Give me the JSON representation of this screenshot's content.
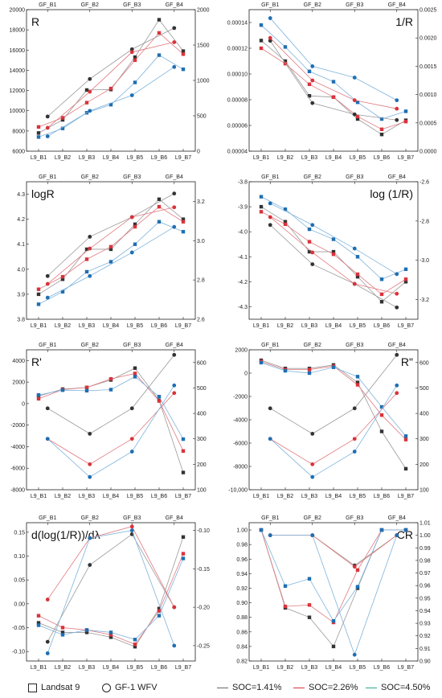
{
  "chart_data": [
    {
      "type": "line",
      "title": "R",
      "top_ticks": [
        "GF_B1",
        "GF_B2",
        "GF_B3",
        "GF_B4"
      ],
      "bottom_ticks": [
        "L9_B1",
        "L9_B2",
        "L9_B3",
        "L9_B4",
        "L9_B5",
        "L9_B6",
        "L9_B7"
      ],
      "left_axis": {
        "min": 6000,
        "max": 20000,
        "ticks": [
          "6000",
          "8000",
          "10000",
          "12000",
          "14000",
          "16000",
          "18000",
          "20000"
        ]
      },
      "right_axis": {
        "min": 0,
        "max": 2000,
        "ticks": [
          "0",
          "500",
          "1000",
          "1500",
          "2000"
        ]
      },
      "landsat": [
        {
          "soc": "SOC=1.41%",
          "values": [
            7800,
            9100,
            12050,
            12100,
            15300,
            19000,
            15900
          ]
        },
        {
          "soc": "SOC=2.26%",
          "values": [
            8400,
            9300,
            10800,
            12200,
            15000,
            17700,
            15600
          ]
        },
        {
          "soc": "SOC=4.50%",
          "values": [
            7400,
            8250,
            9800,
            10600,
            12800,
            15500,
            14100
          ]
        }
      ],
      "gf": [
        {
          "soc": "SOC=1.41%",
          "values": [
            490,
            1020,
            1440,
            1740
          ]
        },
        {
          "soc": "SOC=2.26%",
          "values": [
            330,
            840,
            1400,
            1540
          ]
        },
        {
          "soc": "SOC=4.50%",
          "values": [
            210,
            570,
            790,
            1190
          ]
        }
      ]
    },
    {
      "type": "line",
      "title": "1/R",
      "top_ticks": [
        "GF_B1",
        "GF_B2",
        "GF_B3",
        "GF_B4"
      ],
      "bottom_ticks": [
        "L9_B1",
        "L9_B2",
        "L9_B3",
        "L9_B4",
        "L9_B5",
        "L9_B6",
        "L9_B7"
      ],
      "left_axis": {
        "min": 4e-05,
        "max": 0.00015,
        "ticks": [
          "0.00004",
          "0.00006",
          "0.00008",
          "0.00010",
          "0.00012",
          "0.00014"
        ]
      },
      "right_axis": {
        "min": 0,
        "max": 0.0025,
        "ticks": [
          "0.0000",
          "0.0005",
          "0.0010",
          "0.0015",
          "0.0020",
          "0.0025"
        ]
      },
      "landsat": [
        {
          "soc": "SOC=1.41%",
          "values": [
            0.000126,
            0.00011,
            8.3e-05,
            8.2e-05,
            6.5e-05,
            5.3e-05,
            6.4e-05
          ]
        },
        {
          "soc": "SOC=2.26%",
          "values": [
            0.00012,
            0.000108,
            9.2e-05,
            8.2e-05,
            6.7e-05,
            5.7e-05,
            6.3e-05
          ]
        },
        {
          "soc": "SOC=4.50%",
          "values": [
            0.000138,
            0.000121,
            0.000102,
            9.4e-05,
            7.8e-05,
            6.5e-05,
            7.1e-05
          ]
        }
      ],
      "gf": [
        {
          "soc": "SOC=1.41%",
          "values": [
            0.00195,
            0.00085,
            0.00065,
            0.00055
          ]
        },
        {
          "soc": "SOC=2.26%",
          "values": [
            0.002,
            0.00125,
            0.0009,
            0.00075
          ]
        },
        {
          "soc": "SOC=4.50%",
          "values": [
            0.00235,
            0.0015,
            0.0013,
            0.0009
          ]
        }
      ]
    },
    {
      "type": "line",
      "title": "logR",
      "top_ticks": [
        "GF_B1",
        "GF_B2",
        "GF_B3",
        "GF_B4"
      ],
      "bottom_ticks": [
        "L9_B1",
        "L9_B2",
        "L9_B3",
        "L9_B4",
        "L9_B5",
        "L9_B6",
        "L9_B7"
      ],
      "left_axis": {
        "min": 3.8,
        "max": 4.35,
        "ticks": [
          "3.8",
          "3.9",
          "4.0",
          "4.1",
          "4.2",
          "4.3"
        ]
      },
      "right_axis": {
        "min": 2.6,
        "max": 3.3,
        "ticks": [
          "2.6",
          "2.8",
          "3.0",
          "3.2"
        ]
      },
      "landsat": [
        {
          "soc": "SOC=1.41%",
          "values": [
            3.9,
            3.96,
            4.08,
            4.08,
            4.18,
            4.28,
            4.2
          ]
        },
        {
          "soc": "SOC=2.26%",
          "values": [
            3.92,
            3.97,
            4.04,
            4.09,
            4.17,
            4.25,
            4.19
          ]
        },
        {
          "soc": "SOC=4.50%",
          "values": [
            3.86,
            3.91,
            3.99,
            4.03,
            4.1,
            4.19,
            4.15
          ]
        }
      ],
      "gf": [
        {
          "soc": "SOC=1.41%",
          "values": [
            2.82,
            3.02,
            3.12,
            3.24
          ]
        },
        {
          "soc": "SOC=2.26%",
          "values": [
            2.78,
            2.96,
            3.12,
            3.17
          ]
        },
        {
          "soc": "SOC=4.50%",
          "values": [
            2.71,
            2.82,
            2.94,
            3.07
          ]
        }
      ]
    },
    {
      "type": "line",
      "title": "log (1/R)",
      "top_ticks": [
        "GF_B1",
        "GF_B2",
        "GF_B3",
        "GF_B4"
      ],
      "bottom_ticks": [
        "L9_B1",
        "L9_B2",
        "L9_B3",
        "L9_B4",
        "L9_B5",
        "L9_B6",
        "L9_B7"
      ],
      "left_axis": {
        "min": -4.35,
        "max": -3.8,
        "ticks": [
          "-4.3",
          "-4.2",
          "-4.1",
          "-4.0",
          "-3.9",
          "-3.8"
        ]
      },
      "right_axis": {
        "min": -3.3,
        "max": -2.6,
        "ticks": [
          "-3.2",
          "-3.0",
          "-2.8",
          "-2.6"
        ]
      },
      "landsat": [
        {
          "soc": "SOC=1.41%",
          "values": [
            -3.9,
            -3.96,
            -4.08,
            -4.08,
            -4.18,
            -4.28,
            -4.2
          ]
        },
        {
          "soc": "SOC=2.26%",
          "values": [
            -3.92,
            -3.97,
            -4.04,
            -4.09,
            -4.17,
            -4.25,
            -4.19
          ]
        },
        {
          "soc": "SOC=4.50%",
          "values": [
            -3.86,
            -3.91,
            -3.99,
            -4.03,
            -4.1,
            -4.19,
            -4.15
          ]
        }
      ],
      "gf": [
        {
          "soc": "SOC=1.41%",
          "values": [
            -2.82,
            -3.02,
            -3.12,
            -3.24
          ]
        },
        {
          "soc": "SOC=2.26%",
          "values": [
            -2.78,
            -2.96,
            -3.12,
            -3.17
          ]
        },
        {
          "soc": "SOC=4.50%",
          "values": [
            -2.71,
            -2.82,
            -2.94,
            -3.07
          ]
        }
      ]
    },
    {
      "type": "line",
      "title": "R'",
      "top_ticks": [
        "GF_B1",
        "GF_B2",
        "GF_B3",
        "GF_B4"
      ],
      "bottom_ticks": [
        "L9_B1",
        "L9_B2",
        "L9_B3",
        "L9_B4",
        "L9_B5",
        "L9_B6",
        "L9_B7"
      ],
      "left_axis": {
        "min": -8000,
        "max": 5000,
        "ticks": [
          "-8000",
          "-6000",
          "-4000",
          "-2000",
          "0",
          "2000",
          "4000"
        ]
      },
      "right_axis": {
        "min": 100,
        "max": 650,
        "ticks": [
          "100",
          "200",
          "300",
          "400",
          "500",
          "600"
        ]
      },
      "landsat": [
        {
          "soc": "SOC=1.41%",
          "values": [
            700,
            1350,
            1500,
            2200,
            3300,
            300,
            -6400
          ]
        },
        {
          "soc": "SOC=2.26%",
          "values": [
            450,
            1300,
            1500,
            2300,
            2800,
            250,
            -4400
          ]
        },
        {
          "soc": "SOC=4.50%",
          "values": [
            800,
            1250,
            1200,
            1300,
            2500,
            650,
            -3300
          ]
        }
      ],
      "gf": [
        {
          "soc": "SOC=1.41%",
          "values": [
            420,
            320,
            420,
            630
          ]
        },
        {
          "soc": "SOC=2.26%",
          "values": [
            300,
            200,
            300,
            480
          ]
        },
        {
          "soc": "SOC=4.50%",
          "values": [
            300,
            150,
            250,
            510
          ]
        }
      ]
    },
    {
      "type": "line",
      "title": "R\"",
      "top_ticks": [
        "GF_B1",
        "GF_B2",
        "GF_B3",
        "GF_B4"
      ],
      "bottom_ticks": [
        "L9_B1",
        "L9_B2",
        "L9_B3",
        "L9_B4",
        "L9_B5",
        "L9_B6",
        "L9_B7"
      ],
      "left_axis": {
        "min": -10000,
        "max": 2000,
        "ticks": [
          "-10,000",
          "-8000",
          "-6000",
          "-4000",
          "-2000",
          "0",
          "2000"
        ]
      },
      "right_axis": {
        "min": 100,
        "max": 650,
        "ticks": [
          "100",
          "200",
          "300",
          "400",
          "500",
          "600"
        ]
      },
      "landsat": [
        {
          "soc": "SOC=1.41%",
          "values": [
            1100,
            400,
            400,
            700,
            -800,
            -5000,
            -8200
          ]
        },
        {
          "soc": "SOC=2.26%",
          "values": [
            1000,
            300,
            300,
            600,
            -1000,
            -3600,
            -5700
          ]
        },
        {
          "soc": "SOC=4.50%",
          "values": [
            900,
            200,
            0,
            500,
            -300,
            -2900,
            -5400
          ]
        }
      ],
      "gf": [
        {
          "soc": "SOC=1.41%",
          "values": [
            420,
            320,
            420,
            630
          ]
        },
        {
          "soc": "SOC=2.26%",
          "values": [
            300,
            200,
            300,
            480
          ]
        },
        {
          "soc": "SOC=4.50%",
          "values": [
            300,
            150,
            250,
            510
          ]
        }
      ]
    },
    {
      "type": "line",
      "title": "d(log(1/R))/dλ",
      "top_ticks": [
        "GF_B1",
        "GF_B2",
        "GF_B3",
        "GF_B4"
      ],
      "bottom_ticks": [
        "L9_B1",
        "L9_B2",
        "L9_B3",
        "L9_B4",
        "L9_B5",
        "L9_B6",
        "L9_B7"
      ],
      "left_axis": {
        "min": -0.12,
        "max": 0.17,
        "ticks": [
          "-0.10",
          "-0.05",
          "0.00",
          "0.05",
          "0.10",
          "0.15"
        ]
      },
      "right_axis": {
        "min": -0.27,
        "max": -0.09,
        "ticks": [
          "-0.25",
          "-0.20",
          "-0.15",
          "-0.10"
        ]
      },
      "landsat": [
        {
          "soc": "SOC=1.41%",
          "values": [
            -0.04,
            -0.06,
            -0.06,
            -0.07,
            -0.09,
            -0.01,
            0.14
          ]
        },
        {
          "soc": "SOC=2.26%",
          "values": [
            -0.025,
            -0.05,
            -0.055,
            -0.065,
            -0.085,
            -0.015,
            0.105
          ]
        },
        {
          "soc": "SOC=4.50%",
          "values": [
            -0.045,
            -0.065,
            -0.055,
            -0.06,
            -0.075,
            -0.025,
            0.095
          ]
        }
      ],
      "gf": [
        {
          "soc": "SOC=1.41%",
          "values": [
            -0.245,
            -0.145,
            -0.105,
            -0.2
          ]
        },
        {
          "soc": "SOC=2.26%",
          "values": [
            -0.19,
            -0.11,
            -0.095,
            -0.2
          ]
        },
        {
          "soc": "SOC=4.50%",
          "values": [
            -0.26,
            -0.11,
            -0.1,
            -0.25
          ]
        }
      ]
    },
    {
      "type": "line",
      "title": "CR",
      "top_ticks": [
        "GF_B1",
        "GF_B2",
        "GF_B3",
        "GF_B4"
      ],
      "bottom_ticks": [
        "L9_B1",
        "L9_B2",
        "L9_B3",
        "L9_B4",
        "L9_B5",
        "L9_B6",
        "L9_B7"
      ],
      "left_axis": {
        "min": 0.82,
        "max": 1.01,
        "ticks": [
          "0.82",
          "0.84",
          "0.86",
          "0.88",
          "0.90",
          "0.92",
          "0.94",
          "0.96",
          "0.98",
          "1.00"
        ]
      },
      "right_axis": {
        "min": 0.9,
        "max": 1.01,
        "ticks": [
          "0.90",
          "0.91",
          "0.92",
          "0.93",
          "0.94",
          "0.95",
          "0.96",
          "0.97",
          "0.98",
          "0.99",
          "1.00",
          "1.01"
        ]
      },
      "landsat": [
        {
          "soc": "SOC=1.41%",
          "values": [
            1.0,
            0.893,
            0.88,
            0.84,
            0.92,
            1.0,
            1.0
          ]
        },
        {
          "soc": "SOC=2.26%",
          "values": [
            1.0,
            0.895,
            0.897,
            0.873,
            0.945,
            1.0,
            1.0
          ]
        },
        {
          "soc": "SOC=4.50%",
          "values": [
            1.0,
            0.923,
            0.933,
            0.875,
            0.922,
            1.0,
            1.0
          ]
        }
      ],
      "gf": [
        {
          "soc": "SOC=1.41%",
          "values": [
            1.0,
            1.0,
            0.976,
            1.0
          ]
        },
        {
          "soc": "SOC=2.26%",
          "values": [
            1.0,
            1.0,
            0.975,
            1.0
          ]
        },
        {
          "soc": "SOC=4.50%",
          "values": [
            1.0,
            1.0,
            0.905,
            1.0
          ]
        }
      ]
    }
  ],
  "legend": {
    "landsat": "Landsat 9",
    "gf": "GF-1 WFV",
    "soc1": "SOC=1.41%",
    "soc2": "SOC=2.26%",
    "soc3": "SOC=4.50%"
  },
  "colors": {
    "soc1": "#333333",
    "soc2": "#d9333b",
    "soc3": "#1f6fb2",
    "line1": "#9a9a9a",
    "line2": "#e07a80",
    "line3": "#7fb3dc"
  }
}
